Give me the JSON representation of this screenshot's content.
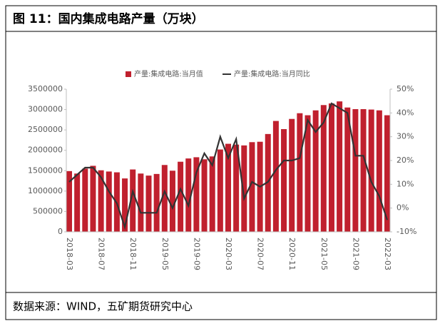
{
  "title": "图 11：国内集成电路产量（万块）",
  "source": "数据来源：WIND，五矿期货研究中心",
  "chart_data": {
    "type": "bar-line",
    "categories": [
      "2018-03",
      null,
      null,
      null,
      "2018-07",
      null,
      null,
      null,
      "2018-11",
      null,
      null,
      null,
      "2019-05",
      null,
      null,
      null,
      "2019-09",
      null,
      null,
      null,
      "2020-03",
      null,
      null,
      null,
      "2020-07",
      null,
      null,
      null,
      "2020-11",
      null,
      null,
      null,
      "2021-05",
      null,
      null,
      null,
      "2021-09",
      null,
      null,
      null,
      "2022-03"
    ],
    "series": [
      {
        "name": "产量:集成电路:当月值",
        "color": "#c0202e",
        "type": "bar",
        "values": [
          1490000,
          1430000,
          1550000,
          1620000,
          1510000,
          1480000,
          1460000,
          1310000,
          1530000,
          1430000,
          1380000,
          1420000,
          1640000,
          1500000,
          1720000,
          1800000,
          1830000,
          1780000,
          1850000,
          2020000,
          2160000,
          2140000,
          2120000,
          2200000,
          2210000,
          2400000,
          2720000,
          2520000,
          2770000,
          2910000,
          2860000,
          2980000,
          3110000,
          3150000,
          3200000,
          3050000,
          3010000,
          3010000,
          3000000,
          2980000,
          2860000
        ]
      },
      {
        "name": "产量:集成电路:当月同比",
        "color": "#333333",
        "type": "line",
        "axis": "y2",
        "values": [
          11,
          14,
          17,
          17,
          13,
          7,
          2,
          -8,
          7,
          -2,
          -2,
          -2,
          7,
          0,
          8,
          1,
          15,
          23,
          18,
          30,
          21,
          29,
          4,
          11,
          9,
          11,
          16,
          20,
          20,
          21,
          37,
          32,
          36,
          44,
          42,
          40,
          22,
          22,
          11,
          5,
          -5
        ]
      }
    ],
    "ylim": [
      0,
      3500000
    ],
    "yticks": [
      0,
      500000,
      1000000,
      1500000,
      2000000,
      2500000,
      3000000,
      3500000
    ],
    "y2lim": [
      -10,
      50
    ],
    "y2ticks": [
      {
        "value": -10,
        "label": "-10%"
      },
      {
        "value": 0,
        "label": "0%"
      },
      {
        "value": 10,
        "label": "10%"
      },
      {
        "value": 20,
        "label": "20%"
      },
      {
        "value": 30,
        "label": "30%"
      },
      {
        "value": 40,
        "label": "40%"
      },
      {
        "value": 50,
        "label": "50%"
      }
    ],
    "legend": "top"
  }
}
